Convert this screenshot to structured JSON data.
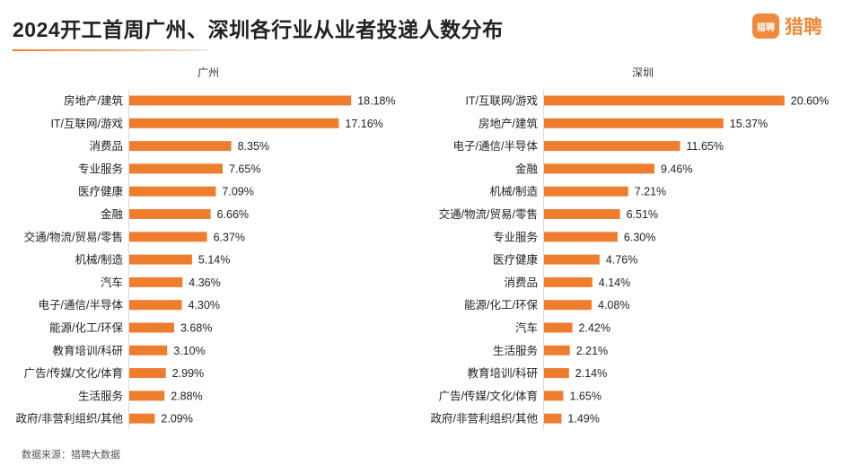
{
  "title": "2024开工首周广州、深圳各行业从业者投递人数分布",
  "logo": {
    "mark": "猎聘",
    "text": "猎聘"
  },
  "source": "数据来源：猎聘大数据",
  "colors": {
    "bar": "#ef7d2e",
    "accent": "#f08a3c"
  },
  "chart_data": [
    {
      "type": "bar",
      "orientation": "horizontal",
      "title": "广州",
      "categories": [
        "房地产/建筑",
        "IT/互联网/游戏",
        "消费品",
        "专业服务",
        "医疗健康",
        "金融",
        "交通/物流/贸易/零售",
        "机械/制造",
        "汽车",
        "电子/通信/半导体",
        "能源/化工/环保",
        "教育培训/科研",
        "广告/传媒/文化/体育",
        "生活服务",
        "政府/非营利组织/其他"
      ],
      "values": [
        18.18,
        17.16,
        8.35,
        7.65,
        7.09,
        6.66,
        6.37,
        5.14,
        4.36,
        4.3,
        3.68,
        3.1,
        2.99,
        2.88,
        2.09
      ],
      "labels": [
        "18.18%",
        "17.16%",
        "8.35%",
        "7.65%",
        "7.09%",
        "6.66%",
        "6.37%",
        "5.14%",
        "4.36%",
        "4.30%",
        "3.68%",
        "3.10%",
        "2.99%",
        "2.88%",
        "2.09%"
      ]
    },
    {
      "type": "bar",
      "orientation": "horizontal",
      "title": "深圳",
      "categories": [
        "IT/互联网/游戏",
        "房地产/建筑",
        "电子/通信/半导体",
        "金融",
        "机械/制造",
        "交通/物流/贸易/零售",
        "专业服务",
        "医疗健康",
        "消费品",
        "能源/化工/环保",
        "汽车",
        "生活服务",
        "教育培训/科研",
        "广告/传媒/文化/体育",
        "政府/非营利组织/其他"
      ],
      "values": [
        20.6,
        15.37,
        11.65,
        9.46,
        7.21,
        6.51,
        6.3,
        4.76,
        4.14,
        4.08,
        2.42,
        2.21,
        2.14,
        1.65,
        1.49
      ],
      "labels": [
        "20.60%",
        "15.37%",
        "11.65%",
        "9.46%",
        "7.21%",
        "6.51%",
        "6.30%",
        "4.76%",
        "4.14%",
        "4.08%",
        "2.42%",
        "2.21%",
        "2.14%",
        "1.65%",
        "1.49%"
      ]
    }
  ]
}
